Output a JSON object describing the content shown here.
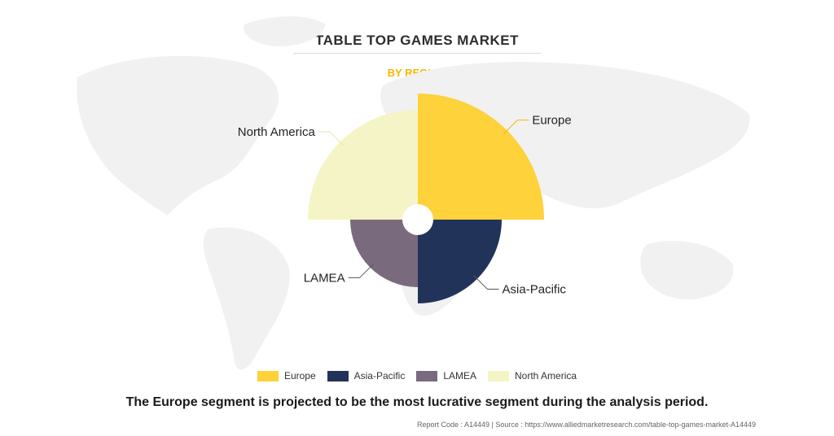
{
  "title": "TABLE TOP GAMES MARKET",
  "subtitle": "BY REGION",
  "caption": "The Europe segment is projected to be the most lucrative segment during the analysis period.",
  "footer": "Report Code : A14449  |  Source : https://www.alliedmarketresearch.com/table-top-games-market-A14449",
  "chart_data": {
    "type": "pie",
    "variant": "nightingale-rose",
    "title": "TABLE TOP GAMES MARKET",
    "subtitle": "BY REGION",
    "categories": [
      "Europe",
      "Asia-Pacific",
      "LAMEA",
      "North America"
    ],
    "values": [
      155,
      103,
      83,
      135
    ],
    "value_note": "relative radius of each quarter segment; no numeric values printed",
    "colors": [
      "#fdd23b",
      "#22335a",
      "#7a6a7e",
      "#f4f4c6"
    ],
    "legend_position": "bottom",
    "grid": false
  }
}
